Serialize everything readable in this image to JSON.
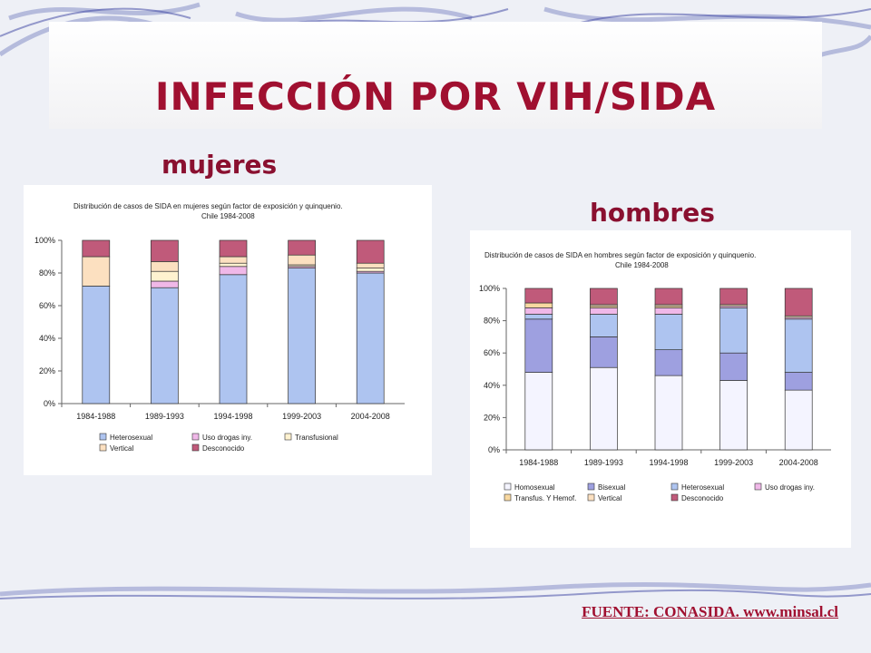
{
  "slide": {
    "title": "INFECCIÓN POR VIH/SIDA",
    "label_women": "mujeres",
    "label_men": "hombres",
    "source": "FUENTE: CONASIDA. www.minsal.cl"
  },
  "colors": {
    "Heterosexual": "#aec4f0",
    "Uso drogas iny.": "#f0b8e8",
    "Transfusional": "#fff2d0",
    "Vertical": "#fce0c0",
    "Desconocido": "#c05a7a",
    "Homosexual": "#f4f4ff",
    "Bisexual": "#9ea0e0",
    "Transfus. Y Hemof.": "#f8d8a0"
  },
  "chart_data": [
    {
      "type": "bar",
      "stacked": true,
      "title": "Distribución de casos de SIDA en mujeres según factor de exposición y quinquenio.",
      "subtitle": "Chile 1984-2008",
      "categories": [
        "1984-1988",
        "1989-1993",
        "1994-1998",
        "1999-2003",
        "2004-2008"
      ],
      "ylim": [
        0,
        100
      ],
      "yticks": [
        "0%",
        "20%",
        "40%",
        "60%",
        "80%",
        "100%"
      ],
      "legend_position": "bottom",
      "series": [
        {
          "name": "Heterosexual",
          "values": [
            72,
            71,
            79,
            83,
            80
          ]
        },
        {
          "name": "Uso drogas iny.",
          "values": [
            0,
            4,
            5,
            1,
            1
          ]
        },
        {
          "name": "Transfusional",
          "values": [
            0,
            6,
            2,
            1,
            2
          ]
        },
        {
          "name": "Vertical",
          "values": [
            18,
            6,
            4,
            6,
            3
          ]
        },
        {
          "name": "Desconocido",
          "values": [
            10,
            13,
            10,
            9,
            14
          ]
        }
      ]
    },
    {
      "type": "bar",
      "stacked": true,
      "title": "Distribución de casos de SIDA en hombres según factor de exposición y quinquenio.",
      "subtitle": "Chile 1984-2008",
      "categories": [
        "1984-1988",
        "1989-1993",
        "1994-1998",
        "1999-2003",
        "2004-2008"
      ],
      "ylim": [
        0,
        100
      ],
      "yticks": [
        "0%",
        "20%",
        "40%",
        "60%",
        "80%",
        "100%"
      ],
      "legend_position": "bottom",
      "series": [
        {
          "name": "Homosexual",
          "values": [
            48,
            51,
            46,
            43,
            37
          ]
        },
        {
          "name": "Bisexual",
          "values": [
            33,
            19,
            16,
            17,
            11
          ]
        },
        {
          "name": "Heterosexual",
          "values": [
            3,
            14,
            22,
            28,
            33
          ]
        },
        {
          "name": "Uso drogas iny.",
          "values": [
            4,
            4,
            4,
            1,
            1
          ]
        },
        {
          "name": "Transfus. Y Hemof.",
          "values": [
            3,
            1,
            1,
            0,
            0
          ]
        },
        {
          "name": "Vertical",
          "values": [
            0,
            1,
            1,
            1,
            1
          ]
        },
        {
          "name": "Desconocido",
          "values": [
            9,
            10,
            10,
            10,
            17
          ]
        }
      ]
    }
  ]
}
